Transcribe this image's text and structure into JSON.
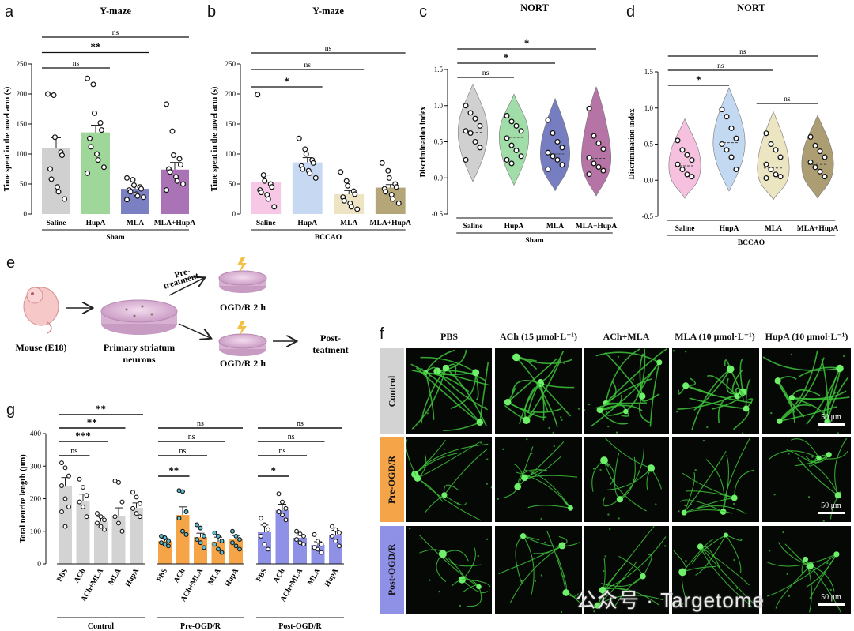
{
  "panel_labels": {
    "a": "a",
    "b": "b",
    "c": "c",
    "d": "d",
    "e": "e",
    "f": "f",
    "g": "g"
  },
  "colors": {
    "saline": "#d0d0d0",
    "hupa_green": "#9fd79a",
    "mla_blue": "#7b80c3",
    "mlahupa_purple": "#a973b6",
    "b_saline": "#f6c8e6",
    "b_hupa": "#c6d8f2",
    "b_mla": "#eee3c3",
    "b_mlahupa": "#b4a679",
    "c_saline": "#c8c8c8",
    "c_hupa": "#91d79a",
    "c_mla": "#5e66b5",
    "c_mlahupa": "#a95a97",
    "d_saline": "#f3b6d9",
    "d_hupa": "#b9d1ef",
    "d_mla": "#e9e0b6",
    "d_mlahupa": "#9f8c5b",
    "g_control": "#d3d3d3",
    "g_pre": "#f5a448",
    "g_post": "#8f91e7",
    "fluor": "#3ec23a"
  },
  "chart_data": [
    {
      "panel": "a",
      "type": "bar",
      "title": "Y-maze",
      "ylabel": "Time spent in the novel arm (s)",
      "ylim": [
        0,
        250
      ],
      "yticks": [
        0,
        50,
        100,
        150,
        200,
        250
      ],
      "categories": [
        "Saline",
        "HupA",
        "MLA",
        "MLA+HupA"
      ],
      "group": "Sham",
      "values": [
        110,
        136,
        42,
        74
      ],
      "errors": [
        17,
        12,
        5,
        12
      ],
      "points": [
        [
          200,
          198,
          128,
          103,
          98,
          75,
          58,
          45,
          37,
          25
        ],
        [
          226,
          216,
          168,
          152,
          140,
          126,
          112,
          100,
          90,
          78,
          68
        ],
        [
          60,
          57,
          48,
          45,
          42,
          40,
          37,
          33,
          30,
          28,
          24
        ],
        [
          183,
          138,
          98,
          92,
          82,
          75,
          70,
          62,
          55,
          50,
          40
        ]
      ],
      "significance": [
        {
          "groups": [
            0,
            1
          ],
          "label": "ns"
        },
        {
          "groups": [
            0,
            2
          ],
          "label": "**"
        },
        {
          "groups": [
            0,
            3
          ],
          "label": "ns"
        }
      ]
    },
    {
      "panel": "b",
      "type": "bar",
      "title": "Y-maze",
      "ylabel": "Time spent in the novel arm (s)",
      "ylim": [
        0,
        250
      ],
      "yticks": [
        0,
        50,
        100,
        150,
        200,
        250
      ],
      "categories": [
        "Saline",
        "HupA",
        "MLA",
        "MLA+HupA"
      ],
      "group": "BCCAO",
      "values": [
        53,
        86,
        33,
        44
      ],
      "errors": [
        12,
        8,
        6,
        5
      ],
      "points": [
        [
          199,
          65,
          55,
          50,
          45,
          40,
          36,
          32,
          25,
          12
        ],
        [
          126,
          108,
          100,
          90,
          85,
          80,
          75,
          72,
          68,
          60
        ],
        [
          70,
          55,
          47,
          38,
          33,
          28,
          22,
          18,
          12,
          8
        ],
        [
          85,
          72,
          60,
          50,
          45,
          42,
          37,
          32,
          25,
          18
        ]
      ],
      "significance": [
        {
          "groups": [
            0,
            1
          ],
          "label": "*"
        },
        {
          "groups": [
            0,
            2
          ],
          "label": "ns"
        },
        {
          "groups": [
            0,
            3
          ],
          "label": "ns"
        }
      ]
    },
    {
      "panel": "c",
      "type": "violin",
      "title": "NORT",
      "ylabel": "Discrimination index",
      "ylim": [
        -0.5,
        1.5
      ],
      "yticks": [
        -0.5,
        0.0,
        0.5,
        1.0,
        1.5
      ],
      "categories": [
        "Saline",
        "HupA",
        "MLA",
        "MLA+HupA"
      ],
      "group": "Sham",
      "medians": [
        0.63,
        0.56,
        0.33,
        0.27
      ],
      "points": [
        [
          1.0,
          0.9,
          0.82,
          0.72,
          0.65,
          0.62,
          0.5,
          0.42,
          0.25
        ],
        [
          0.86,
          0.78,
          0.72,
          0.65,
          0.55,
          0.45,
          0.38,
          0.3,
          0.25,
          0.2
        ],
        [
          0.8,
          0.62,
          0.5,
          0.42,
          0.35,
          0.3,
          0.25,
          0.18,
          0.12
        ],
        [
          0.96,
          0.58,
          0.48,
          0.4,
          0.28,
          0.2,
          0.15,
          0.1,
          0.05
        ]
      ],
      "significance": [
        {
          "groups": [
            0,
            1
          ],
          "label": "ns"
        },
        {
          "groups": [
            0,
            2
          ],
          "label": "*"
        },
        {
          "groups": [
            0,
            3
          ],
          "label": "*"
        }
      ]
    },
    {
      "panel": "d",
      "type": "violin",
      "title": "NORT",
      "ylabel": "Discrimination index",
      "ylim": [
        -0.5,
        1.5
      ],
      "yticks": [
        -0.5,
        0.0,
        0.5,
        1.0,
        1.5
      ],
      "categories": [
        "Saline",
        "HupA",
        "MLA",
        "MLA+HupA"
      ],
      "group": "BCCAO",
      "medians": [
        0.2,
        0.52,
        0.17,
        0.22
      ],
      "points": [
        [
          0.55,
          0.42,
          0.35,
          0.28,
          0.22,
          0.15,
          0.08,
          0.05
        ],
        [
          0.98,
          0.88,
          0.72,
          0.58,
          0.5,
          0.42,
          0.32,
          0.15
        ],
        [
          0.65,
          0.5,
          0.42,
          0.32,
          0.22,
          0.15,
          0.08,
          0.05,
          0.03
        ],
        [
          0.6,
          0.48,
          0.4,
          0.32,
          0.25,
          0.18,
          0.12,
          0.05
        ]
      ],
      "significance": [
        {
          "groups": [
            0,
            1
          ],
          "label": "*"
        },
        {
          "groups": [
            0,
            2
          ],
          "label": "ns"
        },
        {
          "groups": [
            0,
            3
          ],
          "label": "ns"
        },
        {
          "groups": [
            2,
            3
          ],
          "label": "ns"
        }
      ]
    },
    {
      "panel": "g",
      "type": "bar",
      "ylabel": "Total neurite length (μm)",
      "ylim": [
        0,
        400
      ],
      "yticks": [
        0,
        100,
        200,
        300,
        400
      ],
      "categories": [
        "PBS",
        "ACh",
        "ACh+MLA",
        "MLA",
        "HupA"
      ],
      "groups": [
        {
          "name": "Control",
          "values": [
            240,
            192,
            130,
            147,
            172
          ],
          "errors": [
            25,
            22,
            15,
            25,
            15
          ],
          "points": [
            [
              310,
              295,
              270,
              240,
              200,
              175,
              160,
              115
            ],
            [
              260,
              235,
              210,
              190,
              175,
              145
            ],
            [
              155,
              145,
              135,
              125,
              115,
              105
            ],
            [
              255,
              250,
              190,
              145,
              125,
              100
            ],
            [
              220,
              205,
              185,
              170,
              155,
              145
            ]
          ],
          "significance": [
            {
              "groups": [
                0,
                1
              ],
              "label": "ns"
            },
            {
              "groups": [
                0,
                2
              ],
              "label": "***"
            },
            {
              "groups": [
                0,
                3
              ],
              "label": "**"
            },
            {
              "groups": [
                0,
                4
              ],
              "label": "**"
            }
          ]
        },
        {
          "name": "Pre-OGD/R",
          "values": [
            70,
            150,
            82,
            68,
            75
          ],
          "errors": [
            8,
            25,
            12,
            14,
            12
          ],
          "points": [
            [
              85,
              80,
              70,
              65,
              60,
              55
            ],
            [
              225,
              222,
              160,
              140,
              100,
              90
            ],
            [
              120,
              110,
              85,
              75,
              65,
              50
            ],
            [
              95,
              85,
              70,
              60,
              45,
              35
            ],
            [
              100,
              85,
              75,
              65,
              55,
              45
            ]
          ],
          "significance": [
            {
              "groups": [
                0,
                1
              ],
              "label": "**"
            },
            {
              "groups": [
                0,
                2
              ],
              "label": "ns"
            },
            {
              "groups": [
                0,
                3
              ],
              "label": "ns"
            },
            {
              "groups": [
                0,
                4
              ],
              "label": "ns"
            }
          ]
        },
        {
          "name": "Post-OGD/R",
          "values": [
            97,
            165,
            80,
            58,
            88
          ],
          "errors": [
            22,
            18,
            8,
            10,
            15
          ],
          "points": [
            [
              140,
              120,
              105,
              85,
              60,
              45
            ],
            [
              215,
              190,
              170,
              160,
              150,
              135
            ],
            [
              100,
              92,
              85,
              75,
              65,
              60
            ],
            [
              90,
              70,
              60,
              50,
              45,
              35
            ],
            [
              115,
              105,
              95,
              85,
              70,
              55
            ]
          ],
          "significance": [
            {
              "groups": [
                0,
                1
              ],
              "label": "*"
            },
            {
              "groups": [
                0,
                2
              ],
              "label": "ns"
            },
            {
              "groups": [
                0,
                3
              ],
              "label": "ns"
            },
            {
              "groups": [
                0,
                4
              ],
              "label": "ns"
            }
          ]
        }
      ]
    }
  ],
  "schematic": {
    "mouse_label": "Mouse (E18)",
    "neurons_label_1": "Primary striatum",
    "neurons_label_2": "neurons",
    "pretreatment_1": "Pre-",
    "pretreatment_2": "treatment",
    "ogd_top": "OGD/R 2 h",
    "ogd_bottom": "OGD/R 2 h",
    "post_1": "Post-",
    "post_2": "teatment"
  },
  "micrographs": {
    "columns": [
      "PBS",
      "ACh (15 μmol·L⁻¹)",
      "ACh+MLA",
      "MLA (10 μmol·L⁻¹)",
      "HupA (10 μmol·L⁻¹)"
    ],
    "rows": [
      {
        "label": "Control",
        "color": "#d3d3d3"
      },
      {
        "label": "Pre-OGD/R",
        "color": "#f5a448"
      },
      {
        "label": "Post-OGD/R",
        "color": "#8f91e7"
      }
    ],
    "scale_label": "50 μm"
  },
  "watermark": "公众号 · Targetome"
}
